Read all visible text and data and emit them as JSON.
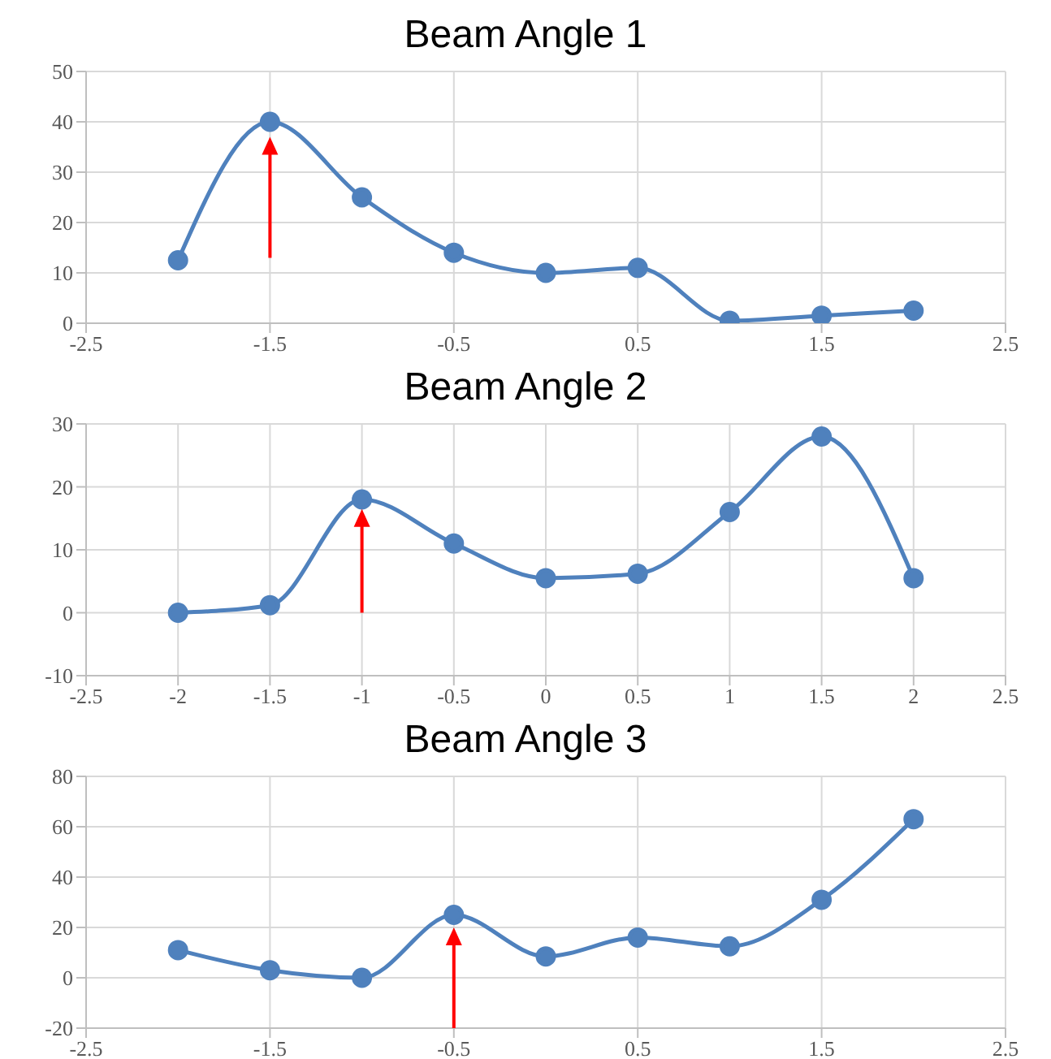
{
  "chart_data": [
    {
      "type": "line",
      "title": "Beam Angle 1",
      "x": [
        -2,
        -1.5,
        -1,
        -0.5,
        0,
        0.5,
        1,
        1.5,
        2
      ],
      "series": [
        {
          "color": "#4f81bd",
          "values": [
            12.5,
            40,
            25,
            14,
            10,
            11,
            0.5,
            1.5,
            2.5
          ]
        }
      ],
      "xlim": [
        -2.5,
        2.5
      ],
      "xticks": [
        -2.5,
        -1.5,
        -0.5,
        0.5,
        1.5,
        2.5
      ],
      "ylim": [
        0,
        50
      ],
      "yticks": [
        0,
        10,
        20,
        30,
        40,
        50
      ],
      "grid": true,
      "marker": "circle",
      "line_style": "solid"
    },
    {
      "type": "line",
      "title": "Beam Angle 2",
      "x": [
        -2,
        -1.5,
        -1,
        -0.5,
        0,
        0.5,
        1,
        1.5,
        2
      ],
      "series": [
        {
          "color": "#4f81bd",
          "values": [
            0,
            1.2,
            18,
            11,
            5.5,
            6.2,
            16,
            28,
            5.5
          ]
        }
      ],
      "xlim": [
        -2.5,
        2.5
      ],
      "xticks": [
        -2.5,
        -2,
        -1.5,
        -1,
        -0.5,
        0,
        0.5,
        1,
        1.5,
        2,
        2.5
      ],
      "ylim": [
        -10,
        30
      ],
      "yticks": [
        -10,
        0,
        10,
        20,
        30
      ],
      "grid": true,
      "marker": "circle",
      "line_style": "solid"
    },
    {
      "type": "line",
      "title": "Beam Angle 3",
      "x": [
        -2,
        -1.5,
        -1,
        -0.5,
        0,
        0.5,
        1,
        1.5,
        2
      ],
      "series": [
        {
          "color": "#4f81bd",
          "values": [
            11,
            3,
            0,
            25,
            8.5,
            16,
            12.5,
            31,
            63
          ]
        }
      ],
      "xlim": [
        -2.5,
        2.5
      ],
      "xticks": [
        -2.5,
        -1.5,
        -0.5,
        0.5,
        1.5,
        2.5
      ],
      "ylim": [
        -20,
        80
      ],
      "yticks": [
        -20,
        0,
        20,
        40,
        60,
        80
      ],
      "grid": true,
      "marker": "circle",
      "line_style": "solid"
    }
  ]
}
